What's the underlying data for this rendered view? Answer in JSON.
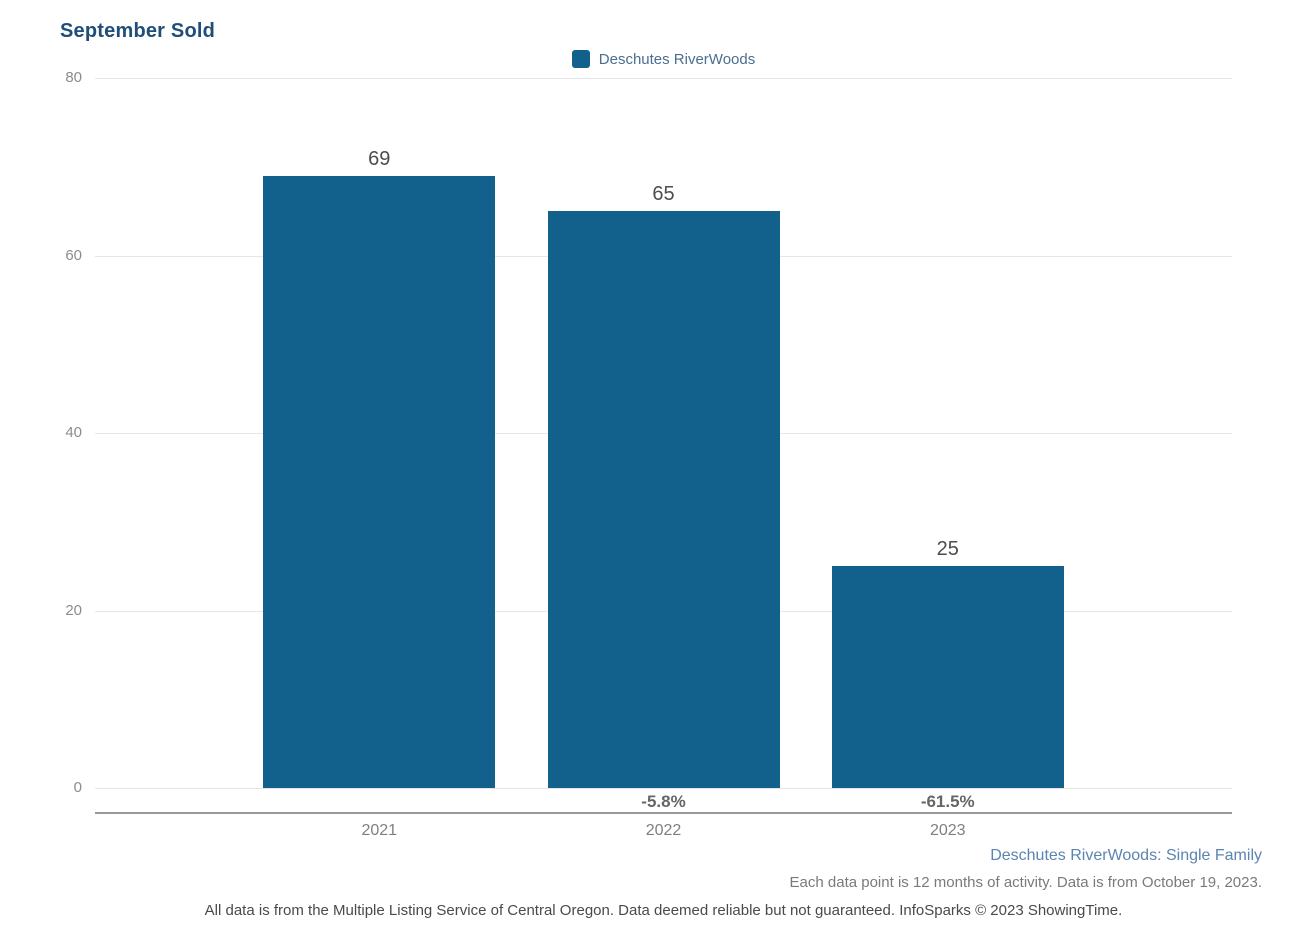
{
  "title": "September Sold",
  "legend": {
    "label": "Deschutes RiverWoods",
    "swatch_color": "#12608C"
  },
  "chart_data": {
    "type": "bar",
    "title": "September Sold",
    "series_name": "Deschutes RiverWoods",
    "categories": [
      "2021",
      "2022",
      "2023"
    ],
    "values": [
      69,
      65,
      25
    ],
    "value_labels": [
      "69",
      "65",
      "25"
    ],
    "pct_change_labels": [
      "",
      "-5.8%",
      "-61.5%"
    ],
    "xlabel": "",
    "ylabel": "",
    "ylim": [
      0,
      80
    ],
    "y_ticks": [
      0,
      20,
      40,
      60,
      80
    ],
    "grid": "horizontal-only",
    "legend_position": "top-center",
    "bar_color": "#12608C"
  },
  "footer": {
    "caption": "Deschutes RiverWoods: Single Family",
    "data_note": "Each data point is 12 months of activity. Data is from October 19, 2023.",
    "disclaimer": "All data is from the Multiple Listing Service of Central Oregon. Data deemed reliable but not guaranteed. InfoSparks © 2023 ShowingTime."
  },
  "colors": {
    "bar": "#12608C",
    "title_text": "#1F4E79",
    "legend_text": "#4B6E91",
    "caption_link": "#5C84B0",
    "gridline": "#E6E6E6",
    "axis_line": "#999999"
  }
}
